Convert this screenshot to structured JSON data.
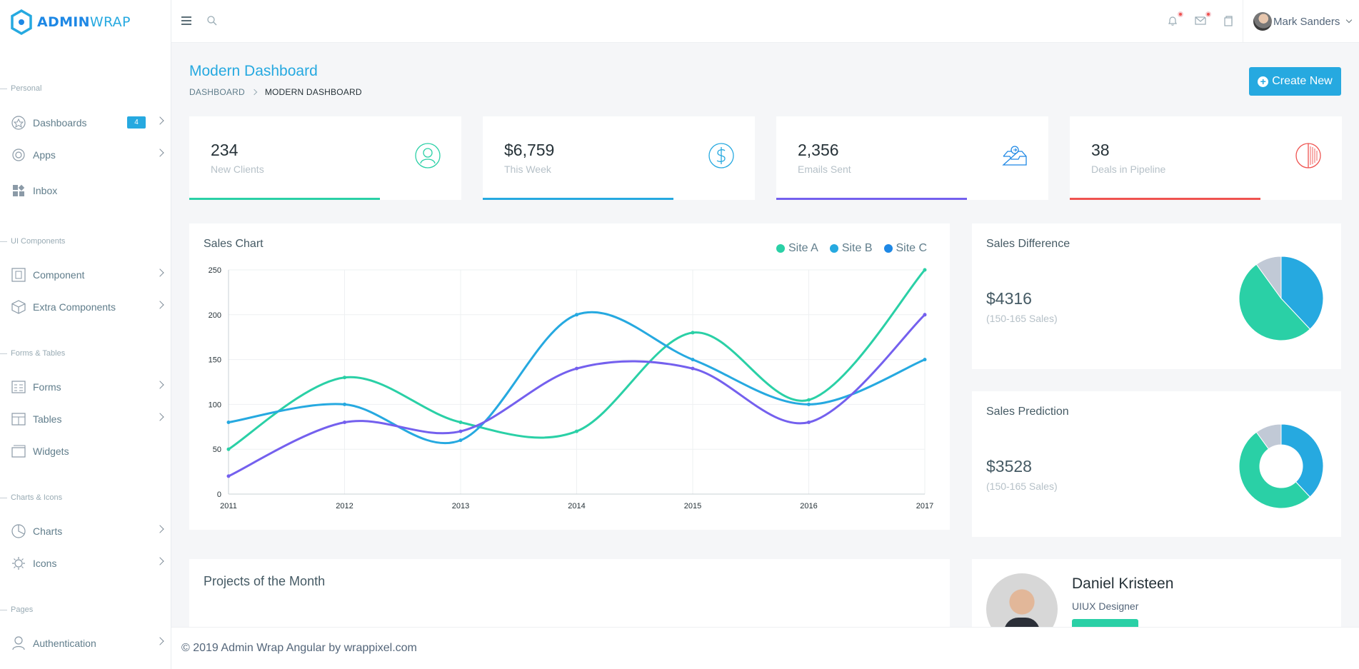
{
  "brand": {
    "part1": "ADMIN",
    "part2": "WRAP"
  },
  "sidebar": {
    "sections": [
      "Personal",
      "UI Components",
      "Forms & Tables",
      "Charts & Icons",
      "Pages"
    ],
    "items": [
      {
        "label": "Dashboards",
        "badge": "4",
        "icon": "dashboard-icon"
      },
      {
        "label": "Apps",
        "icon": "apps-icon"
      },
      {
        "label": "Inbox",
        "icon": "inbox-icon"
      },
      {
        "label": "Component",
        "icon": "component-icon"
      },
      {
        "label": "Extra Components",
        "icon": "box-icon"
      },
      {
        "label": "Forms",
        "icon": "forms-icon"
      },
      {
        "label": "Tables",
        "icon": "tables-icon"
      },
      {
        "label": "Widgets",
        "icon": "widgets-icon"
      },
      {
        "label": "Charts",
        "icon": "charts-icon"
      },
      {
        "label": "Icons",
        "icon": "icons-icon"
      },
      {
        "label": "Authentication",
        "icon": "authentication-icon"
      }
    ]
  },
  "topbar": {
    "user_name": "Mark Sanders"
  },
  "page": {
    "title": "Modern Dashboard",
    "breadcrumb": [
      "DASHBOARD",
      "MODERN DASHBOARD"
    ],
    "create_button": "Create New"
  },
  "stats": [
    {
      "value": "234",
      "label": "New Clients",
      "color": "#2ad0a6",
      "progress": 0.7,
      "icon": "user-icon"
    },
    {
      "value": "$6,759",
      "label": "This Week",
      "color": "#26a9e0",
      "progress": 0.7,
      "icon": "dollar-icon"
    },
    {
      "value": "2,356",
      "label": "Emails Sent",
      "color": "#7460ee",
      "progress": 0.7,
      "icon": "inbox-tray-icon"
    },
    {
      "value": "38",
      "label": "Deals in Pipeline",
      "color": "#ef5350",
      "progress": 0.7,
      "icon": "pie-icon"
    }
  ],
  "sales_chart": {
    "title": "Sales Chart",
    "chart_data": {
      "type": "line",
      "x": [
        "2011",
        "2012",
        "2013",
        "2014",
        "2015",
        "2016",
        "2017"
      ],
      "ylim": [
        0,
        250
      ],
      "yticks": [
        0,
        50,
        100,
        150,
        200,
        250
      ],
      "grid": true,
      "legend": "top-right",
      "series": [
        {
          "name": "Site A",
          "color": "#2ad0a6",
          "values": [
            50,
            130,
            80,
            70,
            180,
            105,
            250
          ]
        },
        {
          "name": "Site B",
          "color": "#26a9e0",
          "values": [
            80,
            100,
            60,
            200,
            150,
            100,
            150
          ]
        },
        {
          "name": "Site C",
          "color": "#7460ee",
          "values": [
            20,
            80,
            70,
            140,
            140,
            80,
            200
          ]
        }
      ]
    }
  },
  "sales_difference": {
    "title": "Sales Difference",
    "value": "$4316",
    "sub": "(150-165 Sales)",
    "chart_data": {
      "type": "pie",
      "values": [
        38,
        52,
        10
      ],
      "colors": [
        "#26a9e0",
        "#2ad0a6",
        "#c1c9d6"
      ]
    }
  },
  "sales_prediction": {
    "title": "Sales Prediction",
    "value": "$3528",
    "sub": "(150-165 Sales)",
    "chart_data": {
      "type": "pie",
      "values": [
        38,
        52,
        10
      ],
      "colors": [
        "#26a9e0",
        "#2ad0a6",
        "#c1c9d6"
      ]
    }
  },
  "projects": {
    "title": "Projects of the Month"
  },
  "profile": {
    "name": "Daniel Kristeen",
    "role": "UIUX Designer"
  },
  "footer": {
    "text": "© 2019 Admin Wrap Angular by wrappixel.com"
  }
}
